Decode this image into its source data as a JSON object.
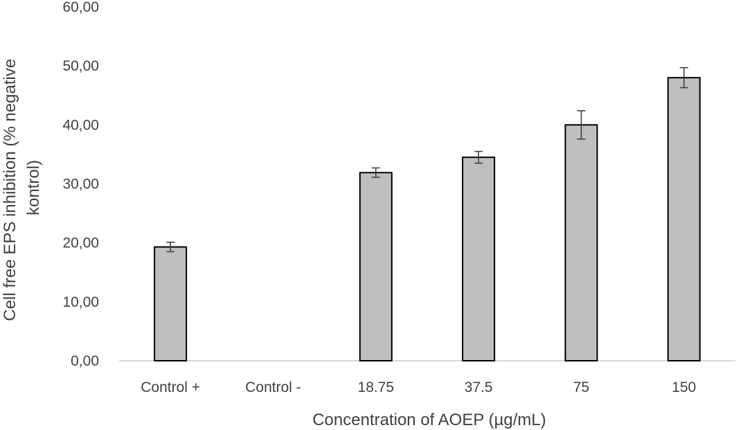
{
  "chart_data": {
    "type": "bar",
    "title": "",
    "xlabel": "Concentration of AOEP (µg/mL)",
    "ylabel_lines": [
      "Cell free EPS inhibition (% negative",
      "kontrol)"
    ],
    "categories": [
      "Control +",
      "Control -",
      "18.75",
      "37.5",
      "75",
      "150"
    ],
    "values": [
      19.3,
      0,
      31.9,
      34.5,
      40.0,
      48.0
    ],
    "errors": [
      0.8,
      0,
      0.8,
      1.0,
      2.4,
      1.7
    ],
    "ylim": [
      0,
      60
    ],
    "yticks": [
      "0,00",
      "10,00",
      "20,00",
      "30,00",
      "40,00",
      "50,00",
      "60,00"
    ],
    "grid": false,
    "legend": "none",
    "bar_color": "#bfbfbf",
    "bar_edge_color": "#000000",
    "error_bar_color": "#404040",
    "axis_color": "#d9d9d9"
  }
}
